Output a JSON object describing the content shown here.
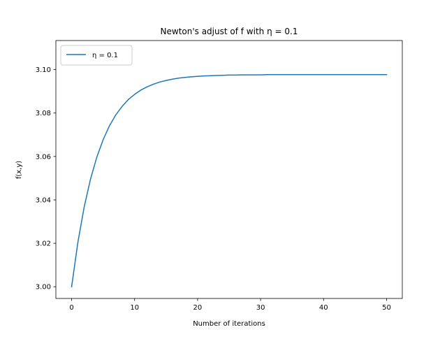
{
  "chart_data": {
    "type": "line",
    "title": "Newton's adjust of f with η = 0.1",
    "xlabel": "Number of iterations",
    "ylabel": "f(x,y)",
    "xlim": [
      -2.5,
      52.5
    ],
    "ylim": [
      2.9946,
      3.1134
    ],
    "xticks": [
      0,
      10,
      20,
      30,
      40,
      50
    ],
    "yticks": [
      3.0,
      3.02,
      3.04,
      3.06,
      3.08,
      3.1
    ],
    "xtick_labels": [
      "0",
      "10",
      "20",
      "30",
      "40",
      "50"
    ],
    "ytick_labels": [
      "3.00",
      "3.02",
      "3.04",
      "3.06",
      "3.08",
      "3.10"
    ],
    "grid": false,
    "legend_position": "top-left",
    "series": [
      {
        "name": "η = 0.1",
        "color": "#1f77b4",
        "x": [
          0,
          1,
          2,
          3,
          4,
          5,
          6,
          7,
          8,
          9,
          10,
          11,
          12,
          13,
          14,
          15,
          16,
          17,
          18,
          19,
          20,
          21,
          22,
          23,
          24,
          25,
          26,
          27,
          28,
          29,
          30,
          31,
          32,
          33,
          34,
          35,
          36,
          37,
          38,
          39,
          40,
          41,
          42,
          43,
          44,
          45,
          46,
          47,
          48,
          49,
          50
        ],
        "y": [
          3.0,
          3.0206,
          3.0368,
          3.0496,
          3.0597,
          3.0677,
          3.0741,
          3.0791,
          3.083,
          3.0862,
          3.0886,
          3.0906,
          3.0921,
          3.0933,
          3.0943,
          3.095,
          3.0956,
          3.0961,
          3.0964,
          3.0967,
          3.0969,
          3.0971,
          3.0972,
          3.0973,
          3.0974,
          3.0975,
          3.0975,
          3.0976,
          3.0976,
          3.0976,
          3.0976,
          3.0977,
          3.0977,
          3.0977,
          3.0977,
          3.0977,
          3.0977,
          3.0977,
          3.0977,
          3.0977,
          3.0977,
          3.0977,
          3.0977,
          3.0977,
          3.0977,
          3.0977,
          3.0977,
          3.0977,
          3.0977,
          3.0977,
          3.0977
        ]
      }
    ]
  }
}
